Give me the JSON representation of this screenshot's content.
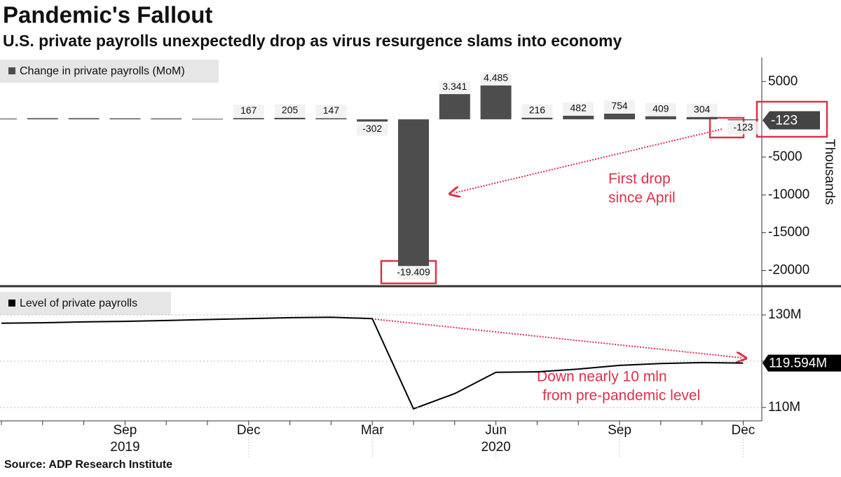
{
  "title": "Pandemic's Fallout",
  "subtitle": "U.S. private payrolls unexpectedly drop as virus resurgence slams into economy",
  "source": "Source: ADP Research Institute",
  "chart_data": [
    {
      "type": "bar",
      "categories": [
        null,
        null,
        null,
        "Sep",
        null,
        null,
        "Dec",
        null,
        null,
        "Mar",
        null,
        null,
        "Jun",
        null,
        null,
        "Sep",
        null,
        null,
        "Dec"
      ],
      "years": [
        null,
        null,
        null,
        "2019",
        null,
        null,
        null,
        null,
        null,
        null,
        null,
        null,
        "2020",
        null,
        null,
        null,
        null,
        null,
        null
      ],
      "series": [
        {
          "name": "Change in private payrolls (MoM)",
          "color": "#4d4d4d",
          "values": [
            100,
            150,
            150,
            130,
            120,
            70,
            167,
            205,
            147,
            -302,
            -19409,
            3341,
            4485,
            216,
            482,
            754,
            409,
            304,
            -123
          ],
          "value_labels": [
            null,
            null,
            null,
            null,
            null,
            null,
            "167",
            "205",
            "147",
            "-302",
            "-19.409",
            "3.341",
            "4.485",
            "216",
            "482",
            "754",
            "409",
            "304",
            "-123"
          ]
        }
      ],
      "ylim": [
        -21800,
        7900
      ],
      "yticks": [
        5000,
        -5000,
        -10000,
        -15000,
        -20000
      ],
      "y_label": "Thousands",
      "annotation": [
        "First drop",
        "since April"
      ]
    },
    {
      "type": "line",
      "categories": [
        null,
        null,
        null,
        "Sep",
        null,
        null,
        "Dec",
        null,
        null,
        "Mar",
        null,
        null,
        "Jun",
        null,
        null,
        "Sep",
        null,
        null,
        "Dec"
      ],
      "series": [
        {
          "name": "Level of private payrolls",
          "color": "#000000",
          "values": [
            128.2,
            128.3,
            128.5,
            128.6,
            128.8,
            129.0,
            129.2,
            129.4,
            129.5,
            129.2,
            109.7,
            113.0,
            117.6,
            117.7,
            118.3,
            119.1,
            119.5,
            119.7,
            119.594
          ],
          "value_labels": [
            null,
            null,
            null,
            null,
            null,
            null,
            null,
            null,
            null,
            null,
            null,
            null,
            null,
            null,
            null,
            null,
            null,
            null,
            "119.594M"
          ]
        }
      ],
      "ylim": [
        107.1,
        135.9
      ],
      "yticks": [
        {
          "value": 130,
          "label": "130M"
        },
        {
          "value": 120,
          "label": null
        },
        {
          "value": 110,
          "label": "110M"
        }
      ],
      "grid": true,
      "annotation": [
        "Down nearly 10 mln",
        "from pre-pandemic level"
      ]
    }
  ]
}
